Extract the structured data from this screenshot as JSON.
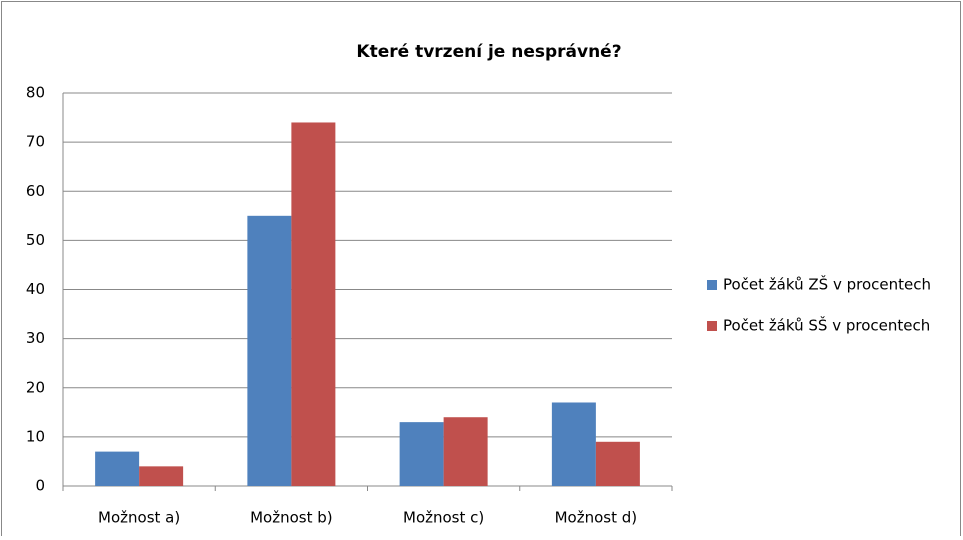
{
  "chart_data": {
    "type": "bar",
    "title": "Které tvrzení je nesprávné?",
    "categories": [
      "Možnost a)",
      "Možnost b)",
      "Možnost c)",
      "Možnost d)"
    ],
    "series": [
      {
        "name": "Počet žáků ZŠ v procentech",
        "color": "#4f81bd",
        "values": [
          7,
          55,
          13,
          17
        ]
      },
      {
        "name": "Počet žáků SŠ v procentech",
        "color": "#c0504d",
        "values": [
          4,
          74,
          14,
          9
        ]
      }
    ],
    "ylim": [
      0,
      80
    ],
    "yticks": [
      0,
      10,
      20,
      30,
      40,
      50,
      60,
      70,
      80
    ],
    "grid": true,
    "legend": "right"
  }
}
